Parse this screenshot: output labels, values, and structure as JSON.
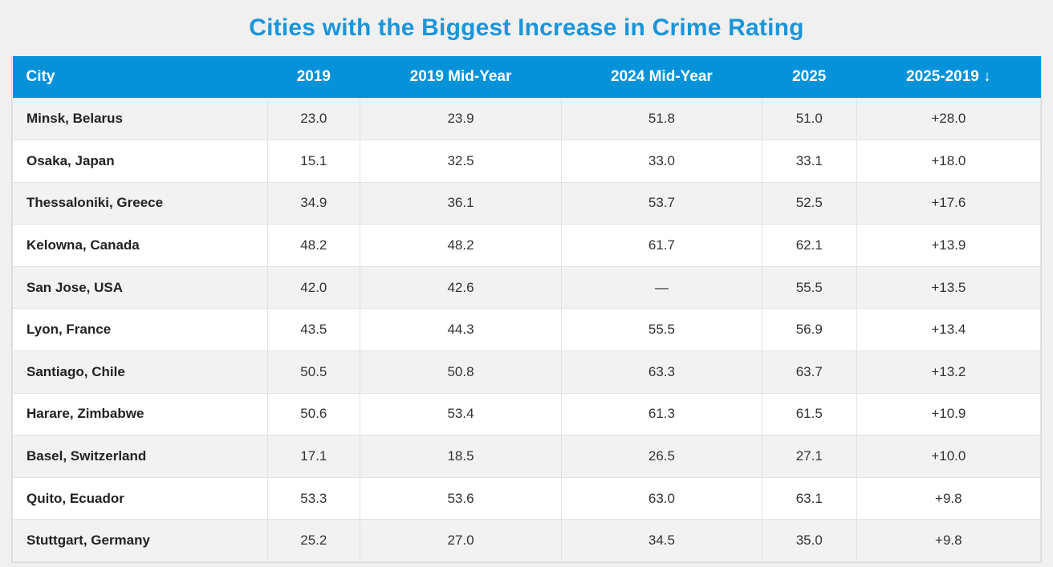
{
  "page": {
    "title": "Cities with the Biggest Increase in Crime Rating",
    "background": "#f0f0f0"
  },
  "colors": {
    "accent_blue": "#0692d9",
    "title_blue": "#1b95d9",
    "header_text": "#ffffff",
    "row_alt": "#f2f2f2",
    "row": "#ffffff",
    "border": "#e2e2e2",
    "city_text": "#222222",
    "value_text": "#333333"
  },
  "table": {
    "columns": [
      {
        "label": "City",
        "align": "left"
      },
      {
        "label": "2019",
        "align": "center"
      },
      {
        "label": "2019 Mid-Year",
        "align": "center"
      },
      {
        "label": "2024 Mid-Year",
        "align": "center"
      },
      {
        "label": "2025",
        "align": "center"
      },
      {
        "label": "2025-2019",
        "align": "center",
        "sort_icon": "↓",
        "sorted": "descending"
      }
    ],
    "rows": [
      {
        "city": "Minsk, Belarus",
        "y2019": "23.0",
        "y2019_mid": "23.9",
        "y2024_mid": "51.8",
        "y2025": "51.0",
        "delta": "+28.0"
      },
      {
        "city": "Osaka, Japan",
        "y2019": "15.1",
        "y2019_mid": "32.5",
        "y2024_mid": "33.0",
        "y2025": "33.1",
        "delta": "+18.0"
      },
      {
        "city": "Thessaloniki, Greece",
        "y2019": "34.9",
        "y2019_mid": "36.1",
        "y2024_mid": "53.7",
        "y2025": "52.5",
        "delta": "+17.6"
      },
      {
        "city": "Kelowna, Canada",
        "y2019": "48.2",
        "y2019_mid": "48.2",
        "y2024_mid": "61.7",
        "y2025": "62.1",
        "delta": "+13.9"
      },
      {
        "city": "San Jose, USA",
        "y2019": "42.0",
        "y2019_mid": "42.6",
        "y2024_mid": "—",
        "y2025": "55.5",
        "delta": "+13.5"
      },
      {
        "city": "Lyon, France",
        "y2019": "43.5",
        "y2019_mid": "44.3",
        "y2024_mid": "55.5",
        "y2025": "56.9",
        "delta": "+13.4"
      },
      {
        "city": "Santiago, Chile",
        "y2019": "50.5",
        "y2019_mid": "50.8",
        "y2024_mid": "63.3",
        "y2025": "63.7",
        "delta": "+13.2"
      },
      {
        "city": "Harare, Zimbabwe",
        "y2019": "50.6",
        "y2019_mid": "53.4",
        "y2024_mid": "61.3",
        "y2025": "61.5",
        "delta": "+10.9"
      },
      {
        "city": "Basel, Switzerland",
        "y2019": "17.1",
        "y2019_mid": "18.5",
        "y2024_mid": "26.5",
        "y2025": "27.1",
        "delta": "+10.0"
      },
      {
        "city": "Quito, Ecuador",
        "y2019": "53.3",
        "y2019_mid": "53.6",
        "y2024_mid": "63.0",
        "y2025": "63.1",
        "delta": "+9.8"
      },
      {
        "city": "Stuttgart, Germany",
        "y2019": "25.2",
        "y2019_mid": "27.0",
        "y2024_mid": "34.5",
        "y2025": "35.0",
        "delta": "+9.8"
      }
    ]
  },
  "chart_data": {
    "type": "table",
    "title": "Cities with the Biggest Increase in Crime Rating",
    "columns": [
      "City",
      "2019",
      "2019 Mid-Year",
      "2024 Mid-Year",
      "2025",
      "2025-2019 ↓"
    ],
    "rows": [
      [
        "Minsk, Belarus",
        23.0,
        23.9,
        51.8,
        51.0,
        28.0
      ],
      [
        "Osaka, Japan",
        15.1,
        32.5,
        33.0,
        33.1,
        18.0
      ],
      [
        "Thessaloniki, Greece",
        34.9,
        36.1,
        53.7,
        52.5,
        17.6
      ],
      [
        "Kelowna, Canada",
        48.2,
        48.2,
        61.7,
        62.1,
        13.9
      ],
      [
        "San Jose, USA",
        42.0,
        42.6,
        null,
        55.5,
        13.5
      ],
      [
        "Lyon, France",
        43.5,
        44.3,
        55.5,
        56.9,
        13.4
      ],
      [
        "Santiago, Chile",
        50.5,
        50.8,
        63.3,
        63.7,
        13.2
      ],
      [
        "Harare, Zimbabwe",
        50.6,
        53.4,
        61.3,
        61.5,
        10.9
      ],
      [
        "Basel, Switzerland",
        17.1,
        18.5,
        26.5,
        27.1,
        10.0
      ],
      [
        "Quito, Ecuador",
        53.3,
        53.6,
        63.0,
        63.1,
        9.8
      ],
      [
        "Stuttgart, Germany",
        25.2,
        27.0,
        34.5,
        35.0,
        9.8
      ]
    ],
    "notes": "Missing 2024 Mid-Year value for San Jose, USA shown as dash; table sorted descending by 2025-2019 change"
  }
}
